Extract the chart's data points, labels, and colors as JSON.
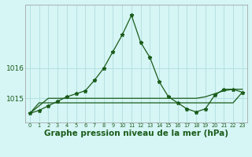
{
  "xlabel_label": "Graphe pression niveau de la mer (hPa)",
  "hours": [
    0,
    1,
    2,
    3,
    4,
    5,
    6,
    7,
    8,
    9,
    10,
    11,
    12,
    13,
    14,
    15,
    16,
    17,
    18,
    19,
    20,
    21,
    22,
    23
  ],
  "main_line": [
    1014.5,
    1014.6,
    1014.75,
    1014.9,
    1015.05,
    1015.15,
    1015.25,
    1015.6,
    1016.0,
    1016.55,
    1017.1,
    1017.75,
    1016.85,
    1016.35,
    1015.55,
    1015.05,
    1014.85,
    1014.65,
    1014.55,
    1014.65,
    1015.1,
    1015.3,
    1015.3,
    1015.2
  ],
  "flat_line1": [
    1014.5,
    1014.85,
    1014.85,
    1014.85,
    1014.85,
    1014.85,
    1014.85,
    1014.85,
    1014.85,
    1014.85,
    1014.85,
    1014.85,
    1014.85,
    1014.85,
    1014.85,
    1014.85,
    1014.85,
    1014.85,
    1014.85,
    1014.85,
    1014.85,
    1014.85,
    1014.85,
    1015.2
  ],
  "flat_line2": [
    1014.5,
    1014.75,
    1015.0,
    1015.0,
    1015.0,
    1015.0,
    1015.0,
    1015.0,
    1015.0,
    1015.0,
    1015.0,
    1015.0,
    1015.0,
    1015.0,
    1015.0,
    1015.0,
    1015.0,
    1015.0,
    1015.0,
    1015.05,
    1015.15,
    1015.25,
    1015.3,
    1015.3
  ],
  "ylim": [
    1014.2,
    1018.1
  ],
  "yticks": [
    1015,
    1016
  ],
  "bg_color": "#d6f5f5",
  "grid_color": "#b0dede",
  "line_color": "#1a5c1a",
  "font_color": "#1a5c1a",
  "xlabel_fontsize": 7.5
}
